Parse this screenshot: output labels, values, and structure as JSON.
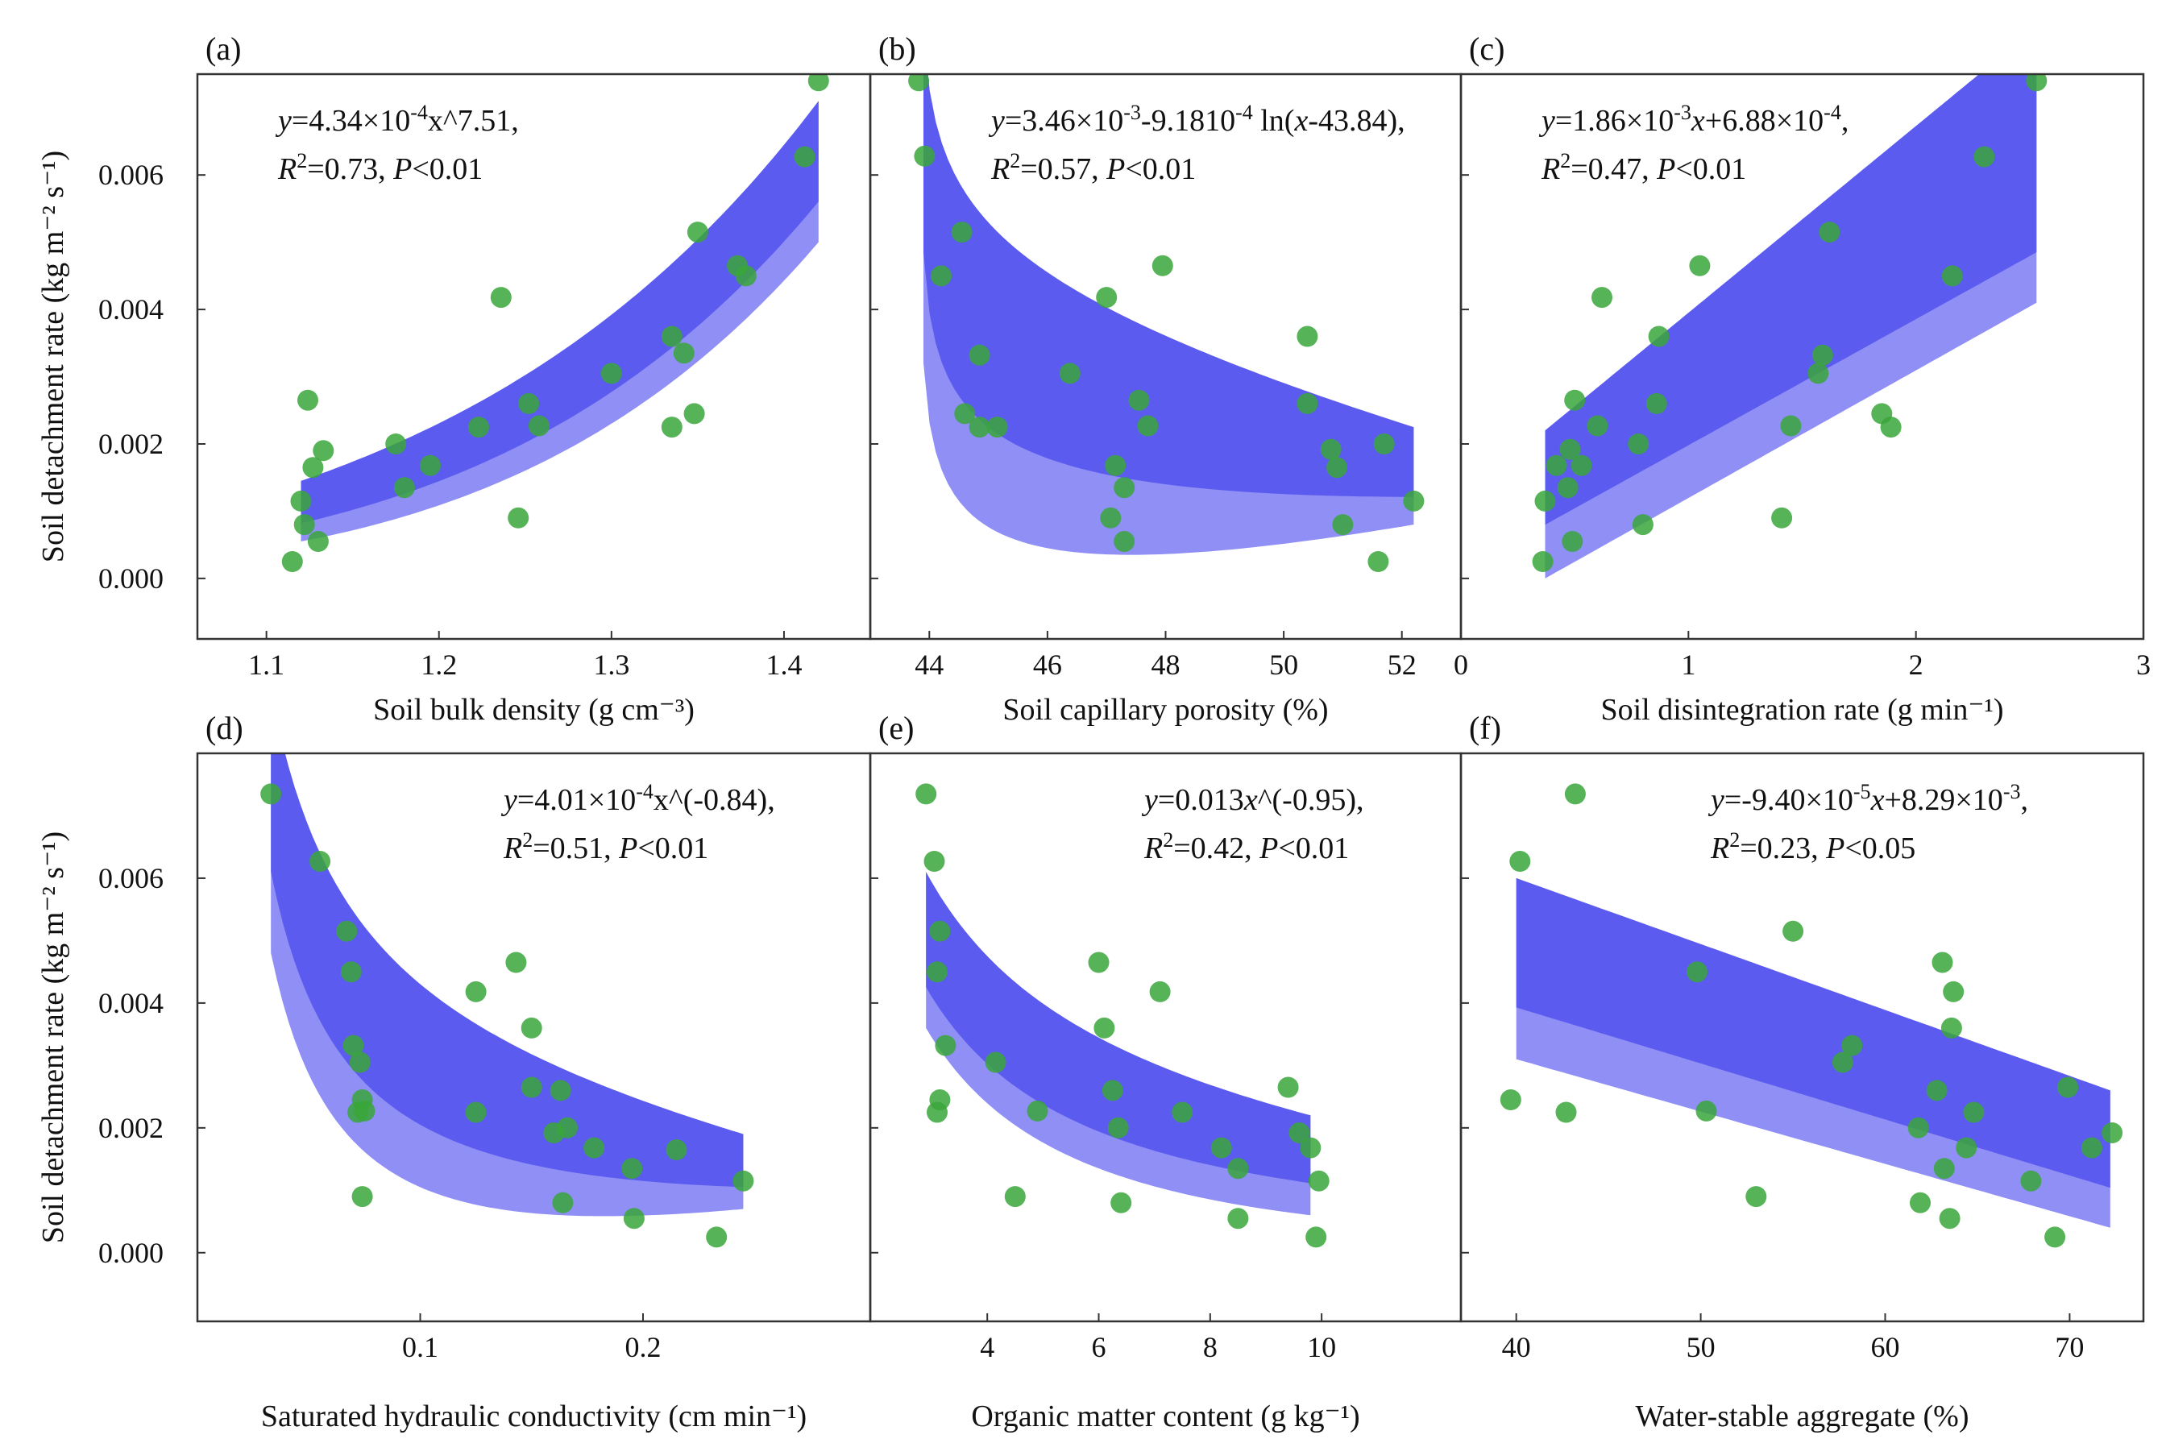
{
  "colors": {
    "point": "#3aa63a",
    "band_light": "#8f8ff5",
    "band_dark": "#5252ee",
    "axis": "#333333"
  },
  "chart_data": [
    {
      "type": "scatter",
      "label": "(a)",
      "xlabel": "Soil bulk density (g cm⁻³)",
      "ylabel": "Soil detachment rate (kg m⁻² s⁻¹)",
      "xlim": [
        1.06,
        1.45
      ],
      "ylim": [
        -0.0009,
        0.0075
      ],
      "xticks": [
        "1.1",
        "1.2",
        "1.3",
        "1.4"
      ],
      "xtick_values": [
        1.1,
        1.2,
        1.3,
        1.4
      ],
      "yticks": [
        "0.000",
        "0.002",
        "0.004",
        "0.006"
      ],
      "ytick_values": [
        0.0,
        0.002,
        0.004,
        0.006
      ],
      "fit": "power",
      "fit_params": {
        "a": 0.000434,
        "b": 7.51
      },
      "eq_line1": {
        "pre": "y",
        "mid": "=4.34×10",
        "sup": "-4",
        "post": "x^7.51,"
      },
      "eq_line2": {
        "r2": "R",
        "r2sup": "2",
        "r2val": "=0.73, ",
        "p": "P",
        "pval": "<0.01"
      },
      "eq_position": "top-left",
      "ci": {
        "x0": 1.12,
        "x1": 1.42,
        "lower0": 0.00055,
        "upper0": 0.00145,
        "lower1": 0.005,
        "upper1": 0.0071
      },
      "points": [
        [
          1.115,
          0.00025
        ],
        [
          1.12,
          0.00115
        ],
        [
          1.122,
          0.0008
        ],
        [
          1.124,
          0.00265
        ],
        [
          1.127,
          0.00165
        ],
        [
          1.13,
          0.00055
        ],
        [
          1.133,
          0.0019
        ],
        [
          1.175,
          0.002
        ],
        [
          1.18,
          0.00135
        ],
        [
          1.195,
          0.00168
        ],
        [
          1.223,
          0.00225
        ],
        [
          1.236,
          0.00418
        ],
        [
          1.246,
          0.0009
        ],
        [
          1.252,
          0.0026
        ],
        [
          1.258,
          0.00227
        ],
        [
          1.3,
          0.00305
        ],
        [
          1.335,
          0.0036
        ],
        [
          1.342,
          0.00335
        ],
        [
          1.335,
          0.00225
        ],
        [
          1.348,
          0.00245
        ],
        [
          1.35,
          0.00515
        ],
        [
          1.373,
          0.00465
        ],
        [
          1.378,
          0.0045
        ],
        [
          1.412,
          0.00627
        ],
        [
          1.42,
          0.0074
        ]
      ]
    },
    {
      "type": "scatter",
      "label": "(b)",
      "xlabel": "Soil capillary porosity (%)",
      "ylabel": "",
      "xlim": [
        43.0,
        53.0
      ],
      "ylim": [
        -0.0009,
        0.0075
      ],
      "xticks": [
        "44",
        "46",
        "48",
        "50",
        "52"
      ],
      "xtick_values": [
        44,
        46,
        48,
        50,
        52
      ],
      "yticks": [],
      "ytick_values": [
        0.0,
        0.002,
        0.004,
        0.006
      ],
      "fit": "log",
      "fit_params": {
        "a": 0.00346,
        "b": -0.000918,
        "c": 43.84
      },
      "eq_line1": {
        "pre": "y",
        "mid": "=3.46×10",
        "sup": "-3",
        "post": "-9.1810",
        "sup2": "-4",
        "post2": " ln(",
        "x": "x",
        "tail": "-43.84),"
      },
      "eq_line2": {
        "r2": "R",
        "r2sup": "2",
        "r2val": "=0.57, ",
        "p": "P",
        "pval": "<0.01"
      },
      "eq_position": "top-right",
      "ci": {
        "x0": 43.9,
        "x1": 52.2,
        "lower0": 0.0032,
        "upper0": 0.0082,
        "lower1": 0.0008,
        "upper1": 0.00225
      },
      "points": [
        [
          43.82,
          0.0074
        ],
        [
          43.92,
          0.00628
        ],
        [
          44.2,
          0.0045
        ],
        [
          44.55,
          0.00515
        ],
        [
          44.6,
          0.00245
        ],
        [
          44.85,
          0.00225
        ],
        [
          44.85,
          0.00332
        ],
        [
          45.15,
          0.00225
        ],
        [
          46.38,
          0.00305
        ],
        [
          47.0,
          0.00418
        ],
        [
          47.07,
          0.0009
        ],
        [
          47.15,
          0.00168
        ],
        [
          47.3,
          0.00135
        ],
        [
          47.3,
          0.00055
        ],
        [
          47.55,
          0.00265
        ],
        [
          47.7,
          0.00227
        ],
        [
          47.95,
          0.00465
        ],
        [
          50.4,
          0.0036
        ],
        [
          50.4,
          0.0026
        ],
        [
          50.8,
          0.00192
        ],
        [
          50.9,
          0.00165
        ],
        [
          51.0,
          0.0008
        ],
        [
          51.6,
          0.00025
        ],
        [
          51.7,
          0.002
        ],
        [
          52.2,
          0.00115
        ]
      ]
    },
    {
      "type": "scatter",
      "label": "(c)",
      "xlabel": "Soil disintegration rate (g min⁻¹)",
      "ylabel": "",
      "xlim": [
        0,
        3
      ],
      "ylim": [
        -0.0009,
        0.0075
      ],
      "xticks": [
        "0",
        "1",
        "2",
        "3"
      ],
      "xtick_values": [
        0,
        1,
        2,
        3
      ],
      "yticks": [],
      "ytick_values": [
        0.0,
        0.002,
        0.004,
        0.006
      ],
      "fit": "linear",
      "fit_params": {
        "a": 0.00186,
        "b": 0.000688
      },
      "eq_line1": {
        "pre": "y",
        "mid": "=1.86×10",
        "sup": "-3",
        "post": "",
        "x": "x",
        "tail": "+6.88×10",
        "sup2": "-4",
        "post2": ","
      },
      "eq_line2": {
        "r2": "R",
        "r2sup": "2",
        "r2val": "=0.47, ",
        "p": "P",
        "pval": "<0.01"
      },
      "eq_position": "top-left",
      "ci": {
        "x0": 0.37,
        "x1": 2.53,
        "lower0": 0.0,
        "upper0": 0.0022,
        "lower1": 0.0041,
        "upper1": 0.0082
      },
      "points": [
        [
          0.36,
          0.00025
        ],
        [
          0.37,
          0.00115
        ],
        [
          0.42,
          0.00168
        ],
        [
          0.47,
          0.00135
        ],
        [
          0.48,
          0.00192
        ],
        [
          0.49,
          0.00055
        ],
        [
          0.5,
          0.00265
        ],
        [
          0.53,
          0.00168
        ],
        [
          0.6,
          0.00227
        ],
        [
          0.62,
          0.00418
        ],
        [
          0.78,
          0.002
        ],
        [
          0.8,
          0.0008
        ],
        [
          0.86,
          0.0026
        ],
        [
          0.87,
          0.0036
        ],
        [
          1.05,
          0.00465
        ],
        [
          1.41,
          0.0009
        ],
        [
          1.45,
          0.00227
        ],
        [
          1.57,
          0.00305
        ],
        [
          1.59,
          0.00332
        ],
        [
          1.62,
          0.00515
        ],
        [
          1.85,
          0.00245
        ],
        [
          1.89,
          0.00225
        ],
        [
          2.16,
          0.0045
        ],
        [
          2.3,
          0.00627
        ],
        [
          2.53,
          0.0074
        ]
      ]
    },
    {
      "type": "scatter",
      "label": "(d)",
      "xlabel": "Saturated hydraulic conductivity (cm min⁻¹)",
      "ylabel": "Soil detachment rate (kg m⁻² s⁻¹)",
      "xlim": [
        0.0,
        0.302
      ],
      "ylim": [
        -0.0011,
        0.008
      ],
      "xticks": [
        "0.1",
        "0.2"
      ],
      "xtick_values": [
        0.1,
        0.2
      ],
      "yticks": [
        "0.000",
        "0.002",
        "0.004",
        "0.006"
      ],
      "ytick_values": [
        0.0,
        0.002,
        0.004,
        0.006
      ],
      "fit": "power",
      "fit_params": {
        "a": 0.000401,
        "b": -0.84
      },
      "eq_line1": {
        "pre": "y",
        "mid": "=4.01×10",
        "sup": "-4",
        "post": "x^(-0.84),"
      },
      "eq_line2": {
        "r2": "R",
        "r2sup": "2",
        "r2val": "=0.51, ",
        "p": "P",
        "pval": "<0.01"
      },
      "eq_position": "top-right",
      "ci": {
        "x0": 0.033,
        "x1": 0.245,
        "lower0": 0.0048,
        "upper0": 0.009,
        "lower1": 0.0007,
        "upper1": 0.0019
      },
      "points": [
        [
          0.033,
          0.00735
        ],
        [
          0.055,
          0.00627
        ],
        [
          0.067,
          0.00515
        ],
        [
          0.069,
          0.0045
        ],
        [
          0.07,
          0.00332
        ],
        [
          0.072,
          0.00225
        ],
        [
          0.073,
          0.00305
        ],
        [
          0.074,
          0.00245
        ],
        [
          0.074,
          0.0009
        ],
        [
          0.075,
          0.00227
        ],
        [
          0.125,
          0.00418
        ],
        [
          0.125,
          0.00225
        ],
        [
          0.143,
          0.00465
        ],
        [
          0.15,
          0.0036
        ],
        [
          0.15,
          0.00265
        ],
        [
          0.16,
          0.00192
        ],
        [
          0.163,
          0.0026
        ],
        [
          0.164,
          0.0008
        ],
        [
          0.166,
          0.002
        ],
        [
          0.178,
          0.00168
        ],
        [
          0.195,
          0.00135
        ],
        [
          0.196,
          0.00055
        ],
        [
          0.215,
          0.00165
        ],
        [
          0.233,
          0.00025
        ],
        [
          0.245,
          0.00115
        ]
      ]
    },
    {
      "type": "scatter",
      "label": "(e)",
      "xlabel": "Organic matter content (g kg⁻¹)",
      "ylabel": "",
      "xlim": [
        1.9,
        12.5
      ],
      "ylim": [
        -0.0011,
        0.008
      ],
      "xticks": [
        "4",
        "6",
        "8",
        "10"
      ],
      "xtick_values": [
        4,
        6,
        8,
        10
      ],
      "yticks": [],
      "ytick_values": [
        0.0,
        0.002,
        0.004,
        0.006
      ],
      "fit": "power",
      "fit_params": {
        "a": 0.013,
        "b": -0.95
      },
      "eq_line1": {
        "pre": "y",
        "mid": "=0.013",
        "sup": "",
        "post": "",
        "x": "x",
        "tail": "^(-0.95),"
      },
      "eq_line2": {
        "r2": "R",
        "r2sup": "2",
        "r2val": "=0.42, ",
        "p": "P",
        "pval": "<0.01"
      },
      "eq_position": "top-right",
      "ci": {
        "x0": 2.9,
        "x1": 9.8,
        "lower0": 0.0036,
        "upper0": 0.0061,
        "lower1": 0.0006,
        "upper1": 0.0022
      },
      "points": [
        [
          2.9,
          0.00735
        ],
        [
          3.05,
          0.00627
        ],
        [
          3.1,
          0.0045
        ],
        [
          3.1,
          0.00225
        ],
        [
          3.15,
          0.00515
        ],
        [
          3.15,
          0.00245
        ],
        [
          3.25,
          0.00332
        ],
        [
          4.15,
          0.00305
        ],
        [
          4.5,
          0.0009
        ],
        [
          4.9,
          0.00227
        ],
        [
          6.0,
          0.00465
        ],
        [
          6.1,
          0.0036
        ],
        [
          6.25,
          0.0026
        ],
        [
          6.35,
          0.002
        ],
        [
          6.4,
          0.0008
        ],
        [
          7.1,
          0.00418
        ],
        [
          7.5,
          0.00225
        ],
        [
          8.2,
          0.00168
        ],
        [
          8.5,
          0.00135
        ],
        [
          8.5,
          0.00055
        ],
        [
          9.4,
          0.00265
        ],
        [
          9.6,
          0.00192
        ],
        [
          9.8,
          0.00168
        ],
        [
          9.9,
          0.00025
        ],
        [
          9.95,
          0.00115
        ]
      ]
    },
    {
      "type": "scatter",
      "label": "(f)",
      "xlabel": "Water-stable aggregate (%)",
      "ylabel": "",
      "xlim": [
        37.0,
        74.0
      ],
      "ylim": [
        -0.0011,
        0.008
      ],
      "xticks": [
        "40",
        "50",
        "60",
        "70"
      ],
      "xtick_values": [
        40,
        50,
        60,
        70
      ],
      "yticks": [],
      "ytick_values": [
        0.0,
        0.002,
        0.004,
        0.006
      ],
      "fit": "linear",
      "fit_params": {
        "a": -9.4e-05,
        "b": 0.00829
      },
      "eq_line1": {
        "pre": "y",
        "mid": "=-9.40×10",
        "sup": "-5",
        "post": "",
        "x": "x",
        "tail": "+8.29×10",
        "sup2": "-3",
        "post2": ","
      },
      "eq_line2": {
        "r2": "R",
        "r2sup": "2",
        "r2val": "=0.23, ",
        "p": "P",
        "pval": "<0.05"
      },
      "eq_position": "top-right",
      "ci": {
        "x0": 40.0,
        "x1": 72.2,
        "lower0": 0.0031,
        "upper0": 0.006,
        "lower1": 0.0004,
        "upper1": 0.0026
      },
      "points": [
        [
          39.7,
          0.00245
        ],
        [
          40.2,
          0.00627
        ],
        [
          42.7,
          0.00225
        ],
        [
          43.2,
          0.00735
        ],
        [
          49.8,
          0.0045
        ],
        [
          50.3,
          0.00227
        ],
        [
          53.0,
          0.0009
        ],
        [
          55.0,
          0.00515
        ],
        [
          57.7,
          0.00305
        ],
        [
          58.2,
          0.00332
        ],
        [
          61.8,
          0.002
        ],
        [
          61.9,
          0.0008
        ],
        [
          62.8,
          0.0026
        ],
        [
          63.1,
          0.00465
        ],
        [
          63.2,
          0.00135
        ],
        [
          63.5,
          0.00055
        ],
        [
          63.6,
          0.0036
        ],
        [
          63.7,
          0.00418
        ],
        [
          64.4,
          0.00168
        ],
        [
          64.8,
          0.00225
        ],
        [
          67.9,
          0.00115
        ],
        [
          69.2,
          0.00025
        ],
        [
          69.9,
          0.00265
        ],
        [
          71.2,
          0.00168
        ],
        [
          72.3,
          0.00192
        ]
      ]
    }
  ]
}
